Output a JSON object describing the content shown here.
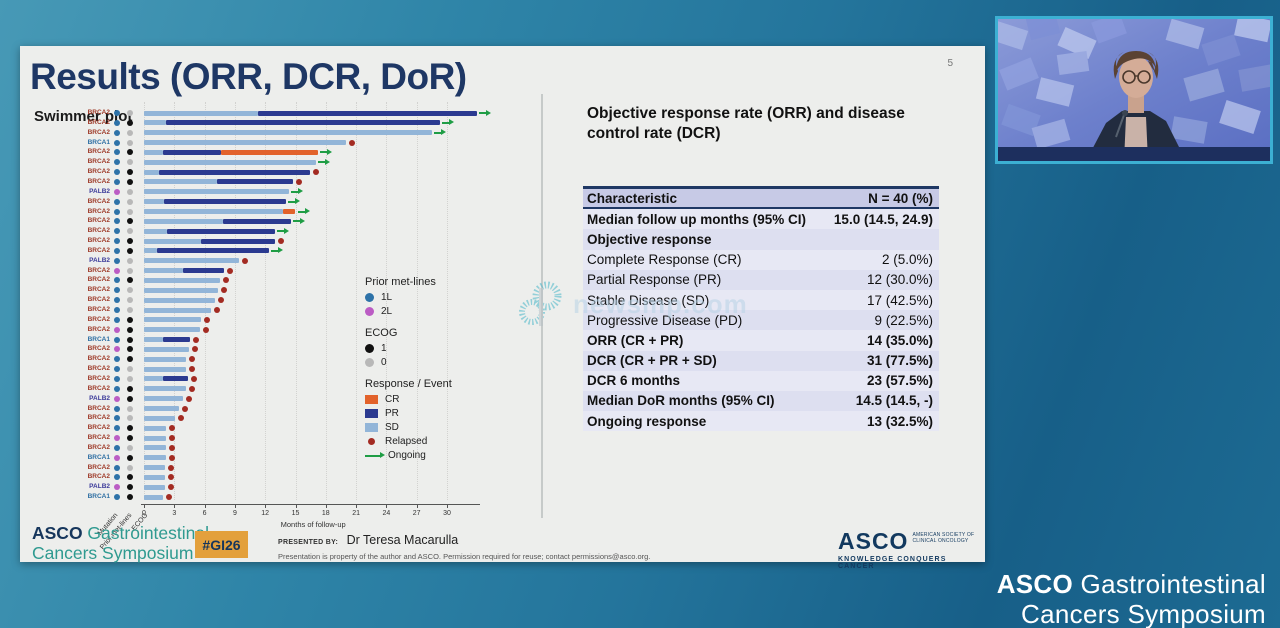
{
  "page": {
    "number": "5"
  },
  "slide": {
    "title": "Results (ORR, DCR, DoR)",
    "subtitle": "Swimmer plot",
    "panel_title": "Objective response rate (ORR) and disease control rate (DCR)"
  },
  "table": {
    "header": [
      "Characteristic",
      "N = 40 (%)"
    ],
    "rows": [
      {
        "label": "Median follow up months (95% CI)",
        "value": "15.0 (14.5, 24.9)",
        "bold": true
      },
      {
        "label": "Objective response",
        "value": "",
        "bold": true
      },
      {
        "label": "Complete Response (CR)",
        "value": "2 (5.0%)",
        "bold": false
      },
      {
        "label": "Partial Response (PR)",
        "value": "12 (30.0%)",
        "bold": false
      },
      {
        "label": "Stable Disease (SD)",
        "value": "17 (42.5%)",
        "bold": false
      },
      {
        "label": "Progressive Disease (PD)",
        "value": "9 (22.5%)",
        "bold": false
      },
      {
        "label": "ORR (CR + PR)",
        "value": "14 (35.0%)",
        "bold": true
      },
      {
        "label": "DCR (CR + PR + SD)",
        "value": "31 (77.5%)",
        "bold": true
      },
      {
        "label": "DCR 6 months",
        "value": "23 (57.5%)",
        "bold": true
      },
      {
        "label": "Median DoR months (95% CI)",
        "value": "14.5 (14.5, -)",
        "bold": true
      },
      {
        "label": "Ongoing response",
        "value": "13 (32.5%)",
        "bold": true
      }
    ]
  },
  "chart_data": {
    "type": "bar",
    "subtype": "swimmer",
    "title": "Swimmer plot",
    "xlabel": "Months of follow-up",
    "xticks": [
      0,
      3,
      6,
      9,
      12,
      15,
      18,
      21,
      24,
      27,
      30
    ],
    "xlim": [
      0,
      33
    ],
    "row_axis_labels": [
      "Mutation",
      "Prior met-lines",
      "ECOG"
    ],
    "colors": {
      "SD": "#92b5d8",
      "PR": "#2b3a90",
      "CR": "#e2622b",
      "relapsed": "#a32b22",
      "ongoing": "#1f9d45",
      "line_1L": "#2d72a8",
      "line_2L": "#bb5cc4",
      "ecog_1": "#111111",
      "ecog_0": "#b8b8b8",
      "mut_BRCA2": "#9e3a28",
      "mut_BRCA1": "#2e6fa3",
      "mut_PALB2": "#3b3a99"
    },
    "legend": {
      "groups": [
        {
          "title": "Prior met-lines",
          "items": [
            {
              "label": "1L",
              "kind": "dot",
              "color": "#2d72a8"
            },
            {
              "label": "2L",
              "kind": "dot",
              "color": "#bb5cc4"
            }
          ]
        },
        {
          "title": "ECOG",
          "items": [
            {
              "label": "1",
              "kind": "dot",
              "color": "#111111"
            },
            {
              "label": "0",
              "kind": "dot",
              "color": "#b8b8b8"
            }
          ]
        },
        {
          "title": "Response / Event",
          "items": [
            {
              "label": "CR",
              "kind": "rect",
              "color": "#e2622b"
            },
            {
              "label": "PR",
              "kind": "rect",
              "color": "#2b3a90"
            },
            {
              "label": "SD",
              "kind": "rect",
              "color": "#92b5d8"
            },
            {
              "label": "Relapsed",
              "kind": "reldot",
              "color": "#a32b22"
            },
            {
              "label": "Ongoing",
              "kind": "arrow",
              "color": "#1f9d45"
            }
          ]
        }
      ]
    },
    "rows": [
      {
        "m": "BRCA2",
        "l": "1L",
        "e": "0",
        "s": [
          [
            "SD",
            0,
            11.3
          ],
          [
            "PR",
            11.3,
            33.0
          ]
        ],
        "ev": "ongoing"
      },
      {
        "m": "BRCA2",
        "l": "1L",
        "e": "1",
        "s": [
          [
            "SD",
            0,
            2.2
          ],
          [
            "PR",
            2.2,
            29.3
          ]
        ],
        "ev": "ongoing"
      },
      {
        "m": "BRCA2",
        "l": "1L",
        "e": "0",
        "s": [
          [
            "SD",
            0,
            28.5
          ]
        ],
        "ev": "ongoing"
      },
      {
        "m": "BRCA1",
        "l": "1L",
        "e": "0",
        "s": [
          [
            "SD",
            0,
            20.0
          ]
        ],
        "ev": "relapsed"
      },
      {
        "m": "BRCA2",
        "l": "1L",
        "e": "1",
        "s": [
          [
            "SD",
            0,
            1.9
          ],
          [
            "PR",
            1.9,
            7.6
          ],
          [
            "CR",
            7.6,
            17.2
          ]
        ],
        "ev": "ongoing"
      },
      {
        "m": "BRCA2",
        "l": "1L",
        "e": "0",
        "s": [
          [
            "SD",
            0,
            17.0
          ]
        ],
        "ev": "ongoing"
      },
      {
        "m": "BRCA2",
        "l": "1L",
        "e": "1",
        "s": [
          [
            "SD",
            0,
            1.5
          ],
          [
            "PR",
            1.5,
            16.4
          ]
        ],
        "ev": "relapsed"
      },
      {
        "m": "BRCA2",
        "l": "1L",
        "e": "1",
        "s": [
          [
            "SD",
            0,
            7.2
          ],
          [
            "PR",
            7.2,
            14.8
          ]
        ],
        "ev": "relapsed"
      },
      {
        "m": "PALB2",
        "l": "2L",
        "e": "0",
        "s": [
          [
            "SD",
            0,
            14.4
          ]
        ],
        "ev": "ongoing"
      },
      {
        "m": "BRCA2",
        "l": "1L",
        "e": "0",
        "s": [
          [
            "SD",
            0,
            2.0
          ],
          [
            "PR",
            2.0,
            14.1
          ]
        ],
        "ev": "ongoing"
      },
      {
        "m": "BRCA2",
        "l": "1L",
        "e": "0",
        "s": [
          [
            "SD",
            0,
            13.8
          ],
          [
            "CR",
            13.8,
            15.0
          ]
        ],
        "ev": "ongoing"
      },
      {
        "m": "BRCA2",
        "l": "1L",
        "e": "1",
        "s": [
          [
            "SD",
            0,
            7.8
          ],
          [
            "PR",
            7.8,
            14.6
          ]
        ],
        "ev": "ongoing"
      },
      {
        "m": "BRCA2",
        "l": "1L",
        "e": "0",
        "s": [
          [
            "SD",
            0,
            2.3
          ],
          [
            "PR",
            2.3,
            13.0
          ]
        ],
        "ev": "ongoing"
      },
      {
        "m": "BRCA2",
        "l": "1L",
        "e": "1",
        "s": [
          [
            "SD",
            0,
            5.6
          ],
          [
            "PR",
            5.6,
            13.0
          ]
        ],
        "ev": "relapsed"
      },
      {
        "m": "BRCA2",
        "l": "1L",
        "e": "1",
        "s": [
          [
            "SD",
            0,
            1.3
          ],
          [
            "PR",
            1.3,
            12.4
          ]
        ],
        "ev": "ongoing"
      },
      {
        "m": "PALB2",
        "l": "1L",
        "e": "0",
        "s": [
          [
            "SD",
            0,
            9.4
          ]
        ],
        "ev": "relapsed"
      },
      {
        "m": "BRCA2",
        "l": "2L",
        "e": "0",
        "s": [
          [
            "SD",
            0,
            3.9
          ],
          [
            "PR",
            3.9,
            7.9
          ]
        ],
        "ev": "relapsed"
      },
      {
        "m": "BRCA2",
        "l": "1L",
        "e": "1",
        "s": [
          [
            "SD",
            0,
            7.5
          ]
        ],
        "ev": "relapsed"
      },
      {
        "m": "BRCA2",
        "l": "1L",
        "e": "0",
        "s": [
          [
            "SD",
            0,
            7.3
          ]
        ],
        "ev": "relapsed"
      },
      {
        "m": "BRCA2",
        "l": "1L",
        "e": "0",
        "s": [
          [
            "SD",
            0,
            7.0
          ]
        ],
        "ev": "relapsed"
      },
      {
        "m": "BRCA2",
        "l": "1L",
        "e": "0",
        "s": [
          [
            "SD",
            0,
            6.6
          ]
        ],
        "ev": "relapsed"
      },
      {
        "m": "BRCA2",
        "l": "1L",
        "e": "1",
        "s": [
          [
            "SD",
            0,
            5.6
          ]
        ],
        "ev": "relapsed"
      },
      {
        "m": "BRCA2",
        "l": "2L",
        "e": "1",
        "s": [
          [
            "SD",
            0,
            5.5
          ]
        ],
        "ev": "relapsed"
      },
      {
        "m": "BRCA1",
        "l": "1L",
        "e": "1",
        "s": [
          [
            "SD",
            0,
            1.9
          ],
          [
            "PR",
            1.9,
            4.6
          ]
        ],
        "ev": "relapsed"
      },
      {
        "m": "BRCA2",
        "l": "2L",
        "e": "1",
        "s": [
          [
            "SD",
            0,
            4.5
          ]
        ],
        "ev": "relapsed"
      },
      {
        "m": "BRCA2",
        "l": "1L",
        "e": "1",
        "s": [
          [
            "SD",
            0,
            4.2
          ]
        ],
        "ev": "relapsed"
      },
      {
        "m": "BRCA2",
        "l": "1L",
        "e": "0",
        "s": [
          [
            "SD",
            0,
            4.2
          ]
        ],
        "ev": "relapsed"
      },
      {
        "m": "BRCA2",
        "l": "1L",
        "e": "0",
        "s": [
          [
            "SD",
            0,
            1.9
          ],
          [
            "PR",
            1.9,
            4.4
          ]
        ],
        "ev": "relapsed"
      },
      {
        "m": "BRCA2",
        "l": "1L",
        "e": "1",
        "s": [
          [
            "SD",
            0,
            4.2
          ]
        ],
        "ev": "relapsed"
      },
      {
        "m": "PALB2",
        "l": "2L",
        "e": "1",
        "s": [
          [
            "SD",
            0,
            3.9
          ]
        ],
        "ev": "relapsed"
      },
      {
        "m": "BRCA2",
        "l": "1L",
        "e": "0",
        "s": [
          [
            "SD",
            0,
            3.5
          ]
        ],
        "ev": "relapsed"
      },
      {
        "m": "BRCA2",
        "l": "1L",
        "e": "0",
        "s": [
          [
            "SD",
            0,
            3.1
          ]
        ],
        "ev": "relapsed"
      },
      {
        "m": "BRCA2",
        "l": "1L",
        "e": "1",
        "s": [
          [
            "SD",
            0,
            2.2
          ]
        ],
        "ev": "relapsed"
      },
      {
        "m": "BRCA2",
        "l": "2L",
        "e": "1",
        "s": [
          [
            "SD",
            0,
            2.2
          ]
        ],
        "ev": "relapsed"
      },
      {
        "m": "BRCA2",
        "l": "1L",
        "e": "0",
        "s": [
          [
            "SD",
            0,
            2.2
          ]
        ],
        "ev": "relapsed"
      },
      {
        "m": "BRCA1",
        "l": "2L",
        "e": "1",
        "s": [
          [
            "SD",
            0,
            2.2
          ]
        ],
        "ev": "relapsed"
      },
      {
        "m": "BRCA2",
        "l": "1L",
        "e": "0",
        "s": [
          [
            "SD",
            0,
            2.1
          ]
        ],
        "ev": "relapsed"
      },
      {
        "m": "BRCA2",
        "l": "1L",
        "e": "1",
        "s": [
          [
            "SD",
            0,
            2.1
          ]
        ],
        "ev": "relapsed"
      },
      {
        "m": "PALB2",
        "l": "2L",
        "e": "1",
        "s": [
          [
            "SD",
            0,
            2.1
          ]
        ],
        "ev": "relapsed"
      },
      {
        "m": "BRCA1",
        "l": "1L",
        "e": "1",
        "s": [
          [
            "SD",
            0,
            1.9
          ]
        ],
        "ev": "relapsed"
      }
    ]
  },
  "footer": {
    "gi_logo_line1_bold": "ASCO",
    "gi_logo_line1_rest": " Gastrointestinal",
    "gi_logo_line2": "Cancers Symposium",
    "hashtag": "#GI26",
    "presented_by_label": "PRESENTED BY:",
    "presenter": "Dr Teresa Macarulla",
    "disclaimer": "Presentation is property of the author and ASCO. Permission required for reuse; contact permissions@asco.org.",
    "asco_logo": "ASCO",
    "asco_society_line1": "AMERICAN SOCIETY OF",
    "asco_society_line2": "CLINICAL ONCOLOGY",
    "asco_tagline": "KNOWLEDGE CONQUERS CANCER"
  },
  "watermark": {
    "text": "newsmp.com"
  },
  "branding_bottom_right": {
    "line1_bold": "ASCO",
    "line1_rest": " Gastrointestinal",
    "line2": "Cancers Symposium"
  },
  "theme": {
    "slide_bg": "#edeeec",
    "title_color": "#1e3765",
    "outer_teal": "#2f85a8",
    "outer_blue": "#175f88",
    "table_header_bg": "#c7cae6",
    "hashtag_bg": "#e3a03c",
    "gi_teal": "#2f9a90",
    "video_border": "#3cb0d3"
  }
}
